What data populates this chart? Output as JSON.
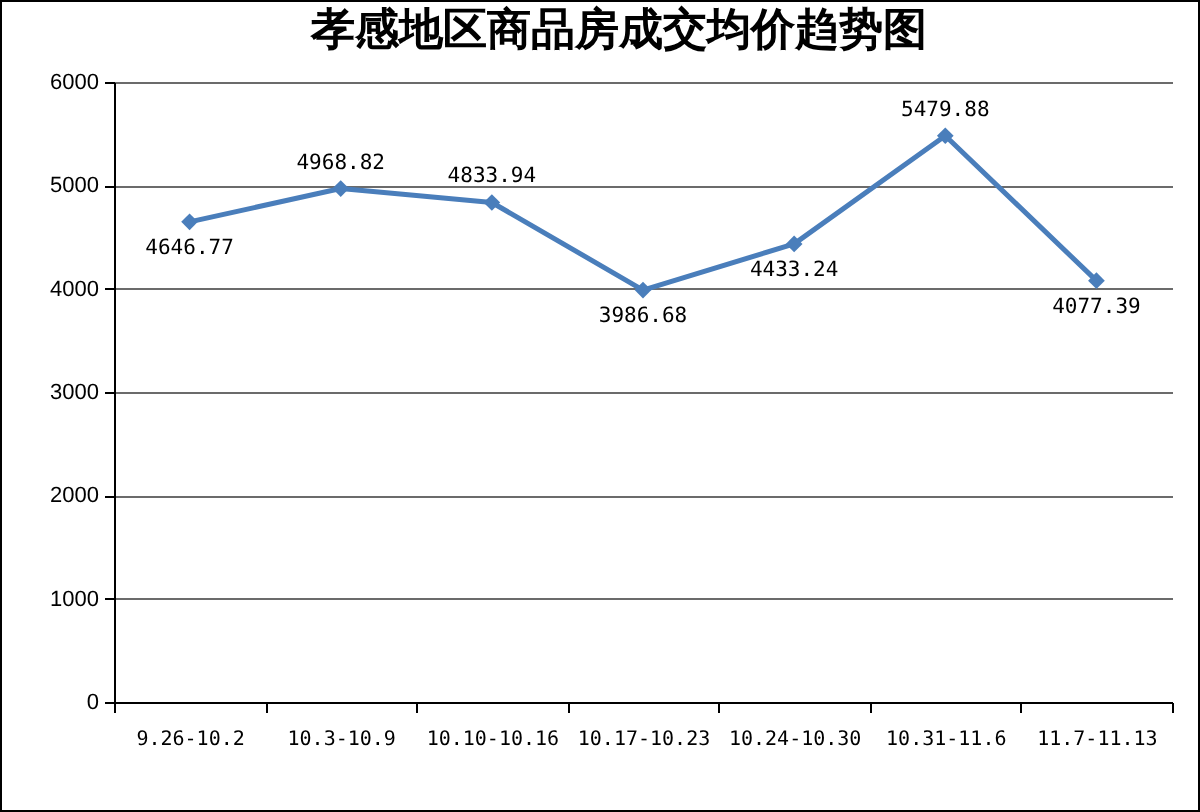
{
  "chart_data": {
    "type": "line",
    "title": "孝感地区商品房成交均价趋势图",
    "categories": [
      "9.26-10.2",
      "10.3-10.9",
      "10.10-10.16",
      "10.17-10.23",
      "10.24-10.30",
      "10.31-11.6",
      "11.7-11.13"
    ],
    "values": [
      4646.77,
      4968.82,
      4833.94,
      3986.68,
      4433.24,
      5479.88,
      4077.39
    ],
    "color": "#4a7ebb",
    "ylim": [
      0,
      6000
    ],
    "yticks": [
      0,
      1000,
      2000,
      3000,
      4000,
      5000,
      6000
    ],
    "grid": "y",
    "marker": "diamond",
    "data_labels": true
  }
}
